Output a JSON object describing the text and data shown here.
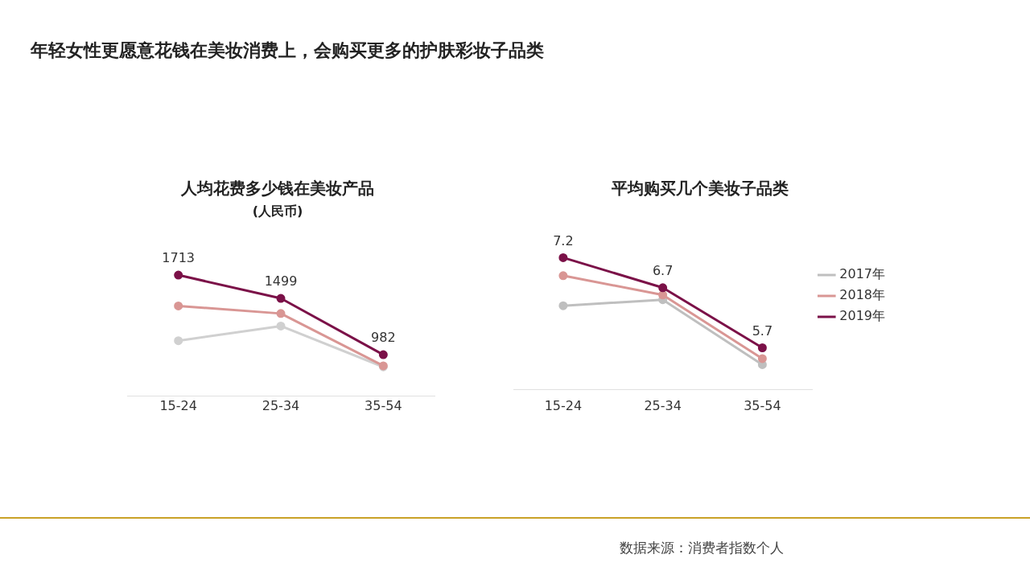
{
  "chart_data": [
    {
      "type": "line",
      "title": "人均花费多少钱在美妆产品",
      "subtitle": "(人民币)",
      "annotations": [
        "年轻女性更愿意花钱在美妆消费上，会购买更多的护肤彩妆子品类"
      ],
      "categories": [
        "15-24",
        "25-34",
        "35-54"
      ],
      "tick_labels": "x",
      "legend": false,
      "grid": false,
      "marker": "circle",
      "series": [
        {
          "color": "#d0d0d0",
          "values": [
            1110,
            1245,
            870
          ]
        },
        {
          "color": "#d99694",
          "values": [
            1430,
            1360,
            880
          ]
        },
        {
          "color": "#7b1148",
          "values": [
            1713,
            1499,
            982
          ],
          "value_labels": [
            "1713",
            "1499",
            "982"
          ]
        }
      ]
    },
    {
      "type": "line",
      "title": "平均购买几个美妆子品类",
      "annotations": [
        "数据来源：消费者指数个人"
      ],
      "categories": [
        "15-24",
        "25-34",
        "35-54"
      ],
      "tick_labels": "x",
      "legend": "right",
      "grid": false,
      "marker": "circle",
      "series": [
        {
          "name": "2017年",
          "color": "#bfbfbf",
          "values": [
            6.4,
            6.5,
            5.42
          ]
        },
        {
          "name": "2018年",
          "color": "#d99694",
          "values": [
            6.9,
            6.58,
            5.52
          ]
        },
        {
          "name": "2019年",
          "color": "#7b1148",
          "values": [
            7.2,
            6.7,
            5.7
          ],
          "value_labels": [
            "7.2",
            "6.7",
            "5.7"
          ]
        }
      ]
    }
  ]
}
